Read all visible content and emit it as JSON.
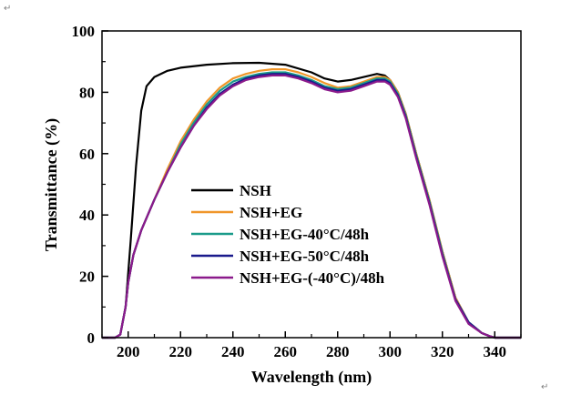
{
  "page_marks": {
    "top_left": "↵",
    "bottom_right": "↵"
  },
  "chart_data": {
    "type": "line",
    "xlabel": "Wavelength (nm)",
    "ylabel": "Transmittance (%)",
    "xlim": [
      190,
      350
    ],
    "ylim": [
      0,
      100
    ],
    "x_ticks": [
      200,
      220,
      240,
      260,
      280,
      300,
      320,
      340
    ],
    "y_ticks": [
      0,
      20,
      40,
      60,
      80,
      100
    ],
    "grid": false,
    "legend_position": "center-left",
    "series": [
      {
        "name": "NSH",
        "color": "#000000",
        "x": [
          190,
          195,
          197,
          199,
          201,
          203,
          205,
          207,
          210,
          215,
          220,
          230,
          240,
          250,
          260,
          270,
          275,
          280,
          285,
          290,
          295,
          298,
          300,
          303,
          306,
          310,
          315,
          320,
          325,
          330,
          335,
          338,
          340,
          342,
          345,
          350
        ],
        "y": [
          0,
          0,
          1,
          10,
          32,
          56,
          74,
          82,
          85,
          87,
          88,
          89,
          89.5,
          89.6,
          89,
          86.5,
          84.5,
          83.5,
          84,
          85,
          86,
          85.5,
          84,
          80,
          73,
          60,
          45,
          28,
          13,
          5,
          1.5,
          0.5,
          0,
          0,
          0,
          0
        ]
      },
      {
        "name": "NSH+EG",
        "color": "#f0962a",
        "x": [
          190,
          195,
          197,
          199,
          200,
          202,
          205,
          210,
          215,
          220,
          225,
          230,
          235,
          240,
          245,
          250,
          255,
          260,
          265,
          270,
          275,
          280,
          285,
          290,
          295,
          298,
          300,
          303,
          306,
          310,
          315,
          320,
          325,
          330,
          335,
          338,
          340,
          342,
          345,
          350
        ],
        "y": [
          0,
          0,
          1,
          10,
          18,
          27,
          35,
          45,
          55,
          64,
          71,
          77,
          81.5,
          84.5,
          86,
          87,
          87.5,
          87.5,
          86.5,
          85,
          83,
          81.5,
          82,
          83.5,
          85,
          85,
          84,
          80,
          73,
          60,
          45,
          28,
          13,
          5,
          1.5,
          0.5,
          0,
          0,
          0,
          0
        ]
      },
      {
        "name": "NSH+EG-40°C/48h",
        "color": "#1a9b8a",
        "x": [
          190,
          195,
          197,
          199,
          200,
          202,
          205,
          210,
          215,
          220,
          225,
          230,
          235,
          240,
          245,
          250,
          255,
          260,
          265,
          270,
          275,
          280,
          285,
          290,
          295,
          298,
          300,
          303,
          306,
          310,
          315,
          320,
          325,
          330,
          335,
          338,
          340,
          342,
          345,
          350
        ],
        "y": [
          0,
          0,
          1,
          10,
          18,
          27,
          35,
          45,
          54,
          63,
          70,
          76,
          80.5,
          83.5,
          85,
          86,
          86.5,
          86.5,
          85.5,
          84,
          82,
          81,
          81.5,
          83,
          84.5,
          84.5,
          83.5,
          79.5,
          72.5,
          59.5,
          44.5,
          27.5,
          12.5,
          5,
          1.5,
          0.5,
          0,
          0,
          0,
          0
        ]
      },
      {
        "name": "NSH+EG-50°C/48h",
        "color": "#1a1a8c",
        "x": [
          190,
          195,
          197,
          199,
          200,
          202,
          205,
          210,
          215,
          220,
          225,
          230,
          235,
          240,
          245,
          250,
          255,
          260,
          265,
          270,
          275,
          280,
          285,
          290,
          295,
          298,
          300,
          303,
          306,
          310,
          315,
          320,
          325,
          330,
          335,
          338,
          340,
          342,
          345,
          350
        ],
        "y": [
          0,
          0,
          1,
          10,
          18,
          27,
          35,
          45,
          54,
          62,
          69,
          75,
          79.5,
          82.5,
          84.5,
          85.5,
          86,
          86,
          85,
          83.5,
          81.5,
          80.5,
          81,
          82.5,
          84,
          84,
          83,
          79,
          72,
          59,
          44,
          27,
          12.5,
          5,
          1.5,
          0.5,
          0,
          0,
          0,
          0
        ]
      },
      {
        "name": "NSH+EG-(-40°C)/48h",
        "color": "#8b1a8b",
        "x": [
          190,
          195,
          197,
          199,
          200,
          202,
          205,
          210,
          215,
          220,
          225,
          230,
          235,
          240,
          245,
          250,
          255,
          260,
          265,
          270,
          275,
          280,
          285,
          290,
          295,
          298,
          300,
          303,
          306,
          310,
          315,
          320,
          325,
          330,
          335,
          338,
          340,
          342,
          345,
          350
        ],
        "y": [
          0,
          0,
          1,
          10,
          18,
          27,
          35,
          45,
          54,
          62,
          69,
          74.5,
          79,
          82,
          84,
          85,
          85.5,
          85.5,
          84.5,
          83,
          81,
          80,
          80.5,
          82,
          83.5,
          83.5,
          82.5,
          78.5,
          71.5,
          58.5,
          43.5,
          26.5,
          12,
          4.5,
          1.5,
          0.5,
          0,
          0,
          0,
          0
        ]
      }
    ]
  }
}
